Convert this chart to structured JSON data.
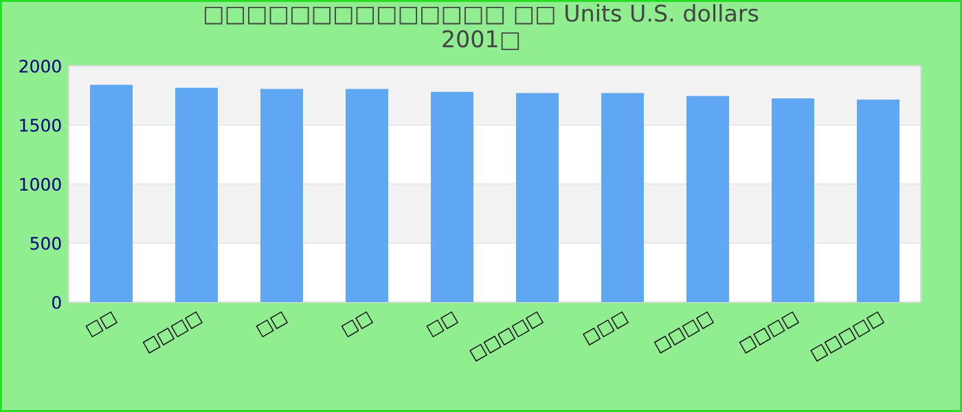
{
  "chart_data": {
    "type": "bar",
    "title": "□□□□□□□□□□□□□□ □□ Units U.S. dollars\n2001□",
    "categories": [
      "□□",
      "□□□□",
      "□□",
      "□□",
      "□□",
      "□□□□□",
      "□□□",
      "□□□□",
      "□□□□",
      "□□□□□"
    ],
    "values": [
      1840,
      1815,
      1805,
      1805,
      1780,
      1770,
      1770,
      1745,
      1725,
      1715
    ],
    "color": "#60a8f4",
    "ylim": [
      0,
      2000
    ],
    "yticks": [
      0,
      500,
      1000,
      1500,
      2000
    ],
    "grid": true
  }
}
